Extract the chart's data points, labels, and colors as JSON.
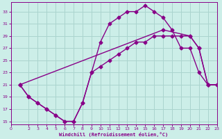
{
  "xlabel": "Windchill (Refroidissement éolien,°C)",
  "bg_color": "#cceee8",
  "grid_color": "#aad4ce",
  "line_color": "#880088",
  "line1_x": [
    1,
    2,
    3,
    4,
    5,
    6,
    7,
    8,
    9,
    10,
    11,
    12,
    13,
    14,
    15,
    16,
    17,
    18,
    19,
    20,
    21,
    22,
    23
  ],
  "line1_y": [
    21,
    19,
    18,
    17,
    16,
    15,
    15,
    18,
    23,
    28,
    31,
    32,
    33,
    33,
    34,
    33,
    32,
    30,
    27,
    27,
    23,
    21,
    21
  ],
  "line2_x": [
    1,
    17,
    20,
    21,
    22,
    23
  ],
  "line2_y": [
    21,
    30,
    29,
    27,
    21,
    21
  ],
  "line3_x": [
    1,
    2,
    3,
    4,
    5,
    6,
    7,
    8,
    9,
    10,
    11,
    12,
    13,
    14,
    15,
    16,
    17,
    18,
    19,
    20,
    21,
    22,
    23
  ],
  "line3_y": [
    21,
    19,
    18,
    17,
    16,
    15,
    15,
    18,
    23,
    24,
    25,
    26,
    27,
    28,
    28,
    29,
    29,
    29,
    29,
    29,
    27,
    21,
    21
  ],
  "xlim": [
    0,
    23
  ],
  "ylim": [
    14.5,
    34.5
  ],
  "xticks": [
    0,
    2,
    3,
    4,
    5,
    6,
    7,
    8,
    9,
    10,
    11,
    12,
    13,
    14,
    15,
    16,
    17,
    18,
    19,
    20,
    21,
    22,
    23
  ],
  "yticks": [
    15,
    17,
    19,
    21,
    23,
    25,
    27,
    29,
    31,
    33
  ],
  "marker": "D",
  "markersize": 2.5,
  "linewidth": 1.0
}
